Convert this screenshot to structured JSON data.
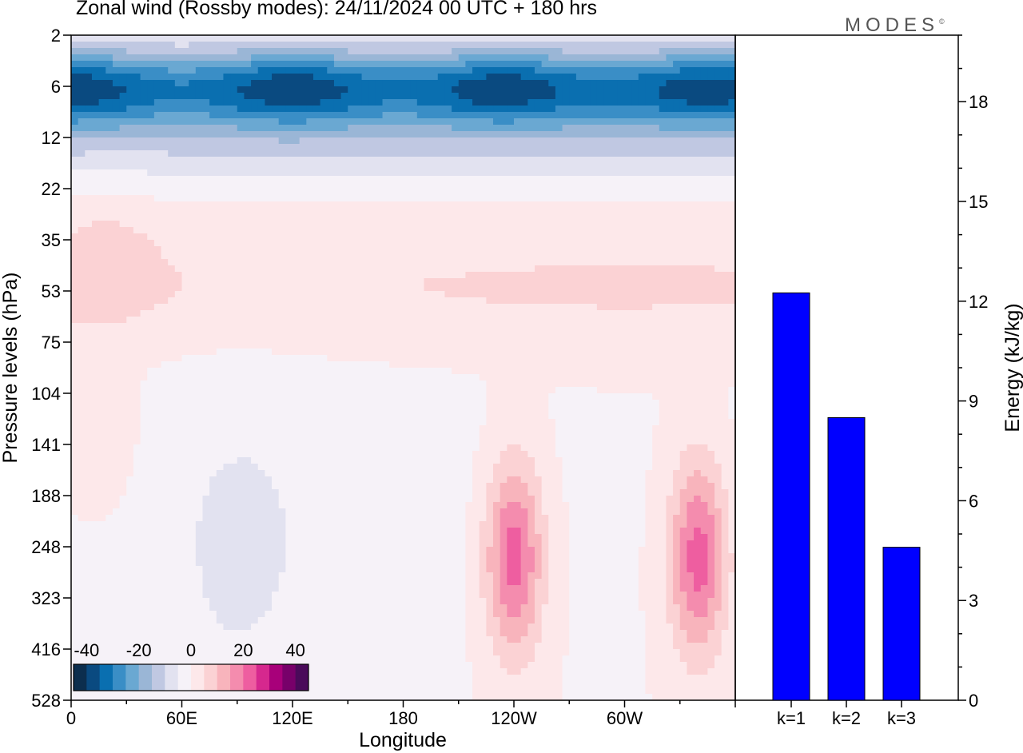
{
  "header": {
    "title": "Zonal wind (Rossby modes):  24/11/2024  00 UTC  + 180 hrs",
    "brand": "MODES",
    "brand_mark": "©"
  },
  "colors": {
    "colorbar": [
      "#0c2e4e",
      "#0a4a80",
      "#0a6fb0",
      "#3a8ec6",
      "#6aa8d2",
      "#9ab6d6",
      "#c0c8e2",
      "#e2e2f0",
      "#f6f2f8",
      "#fde8ea",
      "#fbd2d4",
      "#f8b4bc",
      "#f48cae",
      "#ee5ea0",
      "#d6288e",
      "#a8007a",
      "#78006a",
      "#4a0a5a"
    ],
    "bar": "#0000ff"
  },
  "chart_data": [
    {
      "type": "heatmap",
      "title": "Zonal wind (Rossby modes):  24/11/2024  00 UTC  + 180 hrs",
      "xlabel": "Longitude",
      "ylabel": "Pressure levels (hPa)",
      "x_ticks": [
        "0",
        "60E",
        "120E",
        "180",
        "120W",
        "60W"
      ],
      "y_ticks": [
        "2",
        "6",
        "12",
        "22",
        "35",
        "53",
        "75",
        "104",
        "141",
        "188",
        "248",
        "323",
        "416",
        "528"
      ],
      "colorbar": {
        "ticks": [
          "-40",
          "-20",
          "0",
          "20",
          "40"
        ],
        "min": -45,
        "max": 45,
        "levels": 18
      },
      "features": [
        {
          "desc": "easterly jet core",
          "lon": 0,
          "level_hPa": 6,
          "value": -27
        },
        {
          "desc": "easterly jet core",
          "lon": 120,
          "level_hPa": 6,
          "value": -27
        },
        {
          "desc": "easterly jet core",
          "lon": 230,
          "level_hPa": 6,
          "value": -28
        },
        {
          "desc": "easterly jet core",
          "lon": 335,
          "level_hPa": 6,
          "value": -27
        },
        {
          "desc": "westerly maximum",
          "lon": 240,
          "level_hPa": 160,
          "value": 25
        },
        {
          "desc": "westerly maximum",
          "lon": 340,
          "level_hPa": 160,
          "value": 25
        }
      ]
    },
    {
      "type": "bar",
      "ylabel": "Energy (kJ/kg)",
      "categories": [
        "k=1",
        "k=2",
        "k=3"
      ],
      "values": [
        12.25,
        8.5,
        4.6
      ],
      "ylim": [
        0,
        20
      ],
      "y_ticks": [
        "0",
        "3",
        "6",
        "9",
        "12",
        "15",
        "18"
      ],
      "grid": false
    }
  ]
}
